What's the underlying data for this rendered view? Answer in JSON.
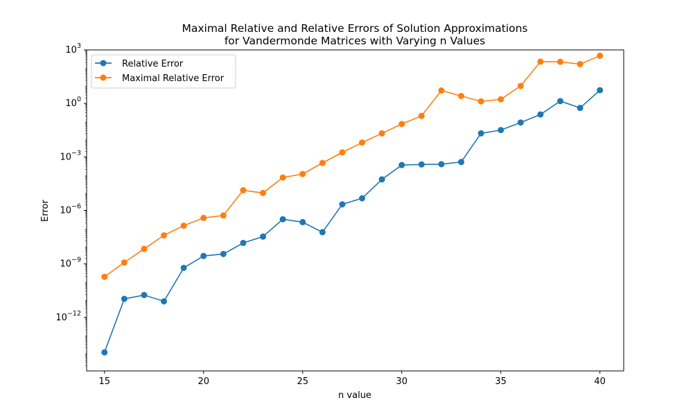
{
  "chart_data": {
    "type": "line",
    "title_line1": "Maximal Relative and Relative Errors of Solution Approximations",
    "title_line2": "for Vandermonde Matrices with Varying n Values",
    "xlabel": "n value",
    "ylabel": "Error",
    "y_scale": "log",
    "xlim": [
      14.1,
      41.2
    ],
    "ylim_exponent": [
      -15,
      3
    ],
    "x_ticks": [
      15,
      20,
      25,
      30,
      35,
      40
    ],
    "y_ticks_exponent": [
      -12,
      -9,
      -6,
      -3,
      0,
      3
    ],
    "y_tick_base": "10",
    "legend_position": "upper-left",
    "grid": false,
    "x": [
      15,
      16,
      17,
      18,
      19,
      20,
      21,
      22,
      23,
      24,
      25,
      26,
      27,
      28,
      29,
      30,
      31,
      32,
      33,
      34,
      35,
      36,
      37,
      38,
      39,
      40
    ],
    "series": [
      {
        "name": "Relative Error",
        "color": "#1f77b4",
        "values": [
          1.1e-14,
          1.1e-11,
          1.8e-11,
          8e-12,
          6e-10,
          2.8e-09,
          3.6e-09,
          1.5e-08,
          3.4e-08,
          3.2e-07,
          2.2e-07,
          6e-08,
          2.2e-06,
          4.8e-06,
          5.5e-05,
          0.00035,
          0.00038,
          0.00039,
          0.00052,
          0.021,
          0.032,
          0.085,
          0.24,
          1.35,
          0.56,
          5.5
        ]
      },
      {
        "name": "Maximal Relative Error",
        "color": "#ff7f0e",
        "values": [
          1.9e-10,
          1.2e-09,
          7e-09,
          4e-08,
          1.4e-07,
          3.8e-07,
          5.2e-07,
          1.35e-05,
          9.5e-06,
          7e-05,
          0.00011,
          0.00046,
          0.0018,
          0.0064,
          0.021,
          0.07,
          0.2,
          5.3,
          2.6,
          1.3,
          1.7,
          9.5,
          220,
          215,
          160,
          470
        ]
      }
    ]
  }
}
